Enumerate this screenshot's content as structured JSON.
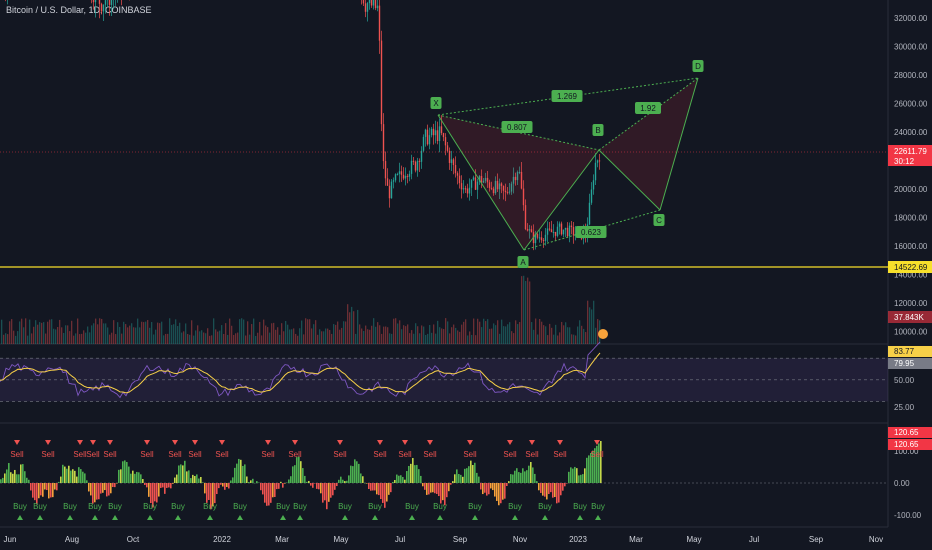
{
  "header": {
    "title": "Bitcoin / U.S. Dollar, 1D, COINBASE"
  },
  "price_axis": {
    "ticks": [
      "32000.00",
      "30000.00",
      "28000.00",
      "26000.00",
      "24000.00",
      "22000.00",
      "20000.00",
      "18000.00",
      "16000.00",
      "14000.00",
      "12000.00",
      "10000.00"
    ]
  },
  "price_tags": {
    "last": "22611.79",
    "countdown": "30:12",
    "support": "14522.69",
    "volume": "37.843K"
  },
  "rsi_axis": {
    "ticks": [
      "50.00",
      "25.00"
    ],
    "tag_main": "83.77",
    "tag_signal": "79.95"
  },
  "osc_axis": {
    "ticks": [
      "100.00",
      "0.00",
      "-100.00"
    ],
    "tag_a": "120.65",
    "tag_b": "120.65"
  },
  "x_axis": {
    "labels": [
      "Jun",
      "Aug",
      "Oct",
      "2022",
      "Mar",
      "May",
      "Jul",
      "Sep",
      "Nov",
      "2023",
      "Mar",
      "May",
      "Jul",
      "Sep",
      "Nov"
    ]
  },
  "pattern": {
    "points": {
      "X": "X",
      "A": "A",
      "B": "B",
      "C": "C",
      "D": "D"
    },
    "ratios": {
      "xb": "0.807",
      "ac": "0.623",
      "bd": "1.92",
      "xd": "1.269"
    }
  },
  "signals": {
    "sell": "Sell",
    "buy": "Buy"
  },
  "colors": {
    "bg": "#131722",
    "up": "#26a69a",
    "down": "#ef5350",
    "last": "#f23645",
    "support": "#f7e02b",
    "rsi": "#7e57c2",
    "rsi_ma": "#f7d048",
    "pattern": "#4caf50"
  },
  "chart_data": {
    "type": "candlestick",
    "title": "Bitcoin / U.S. Dollar, 1D, COINBASE",
    "ylim": [
      9000,
      33000
    ],
    "support_level": 14522.69,
    "last_price": 22611.79,
    "harmonic": [
      {
        "point": "X",
        "date": "Aug",
        "price": 25200
      },
      {
        "point": "A",
        "date": "Nov",
        "price": 15500
      },
      {
        "point": "B",
        "date": "Jan 2023",
        "price": 23500
      },
      {
        "point": "C",
        "date": "Mar 2023",
        "price": 18400
      },
      {
        "point": "D",
        "date": "May 2023",
        "price": 28000
      }
    ],
    "rsi": {
      "last": 83.77,
      "signal": 79.95,
      "levels": [
        70,
        50,
        30
      ]
    },
    "oscillator": {
      "last": 120.65
    }
  }
}
